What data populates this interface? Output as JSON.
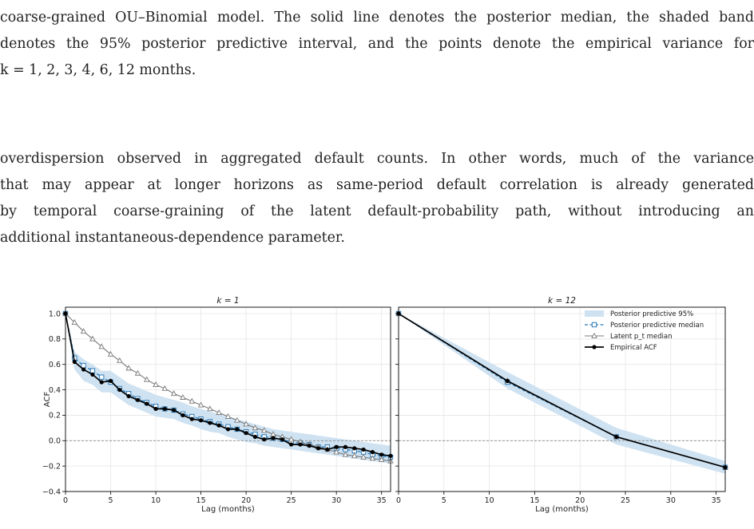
{
  "document": {
    "caption_lines": [
      "coarse-grained OU–Binomial model. The solid line denotes the posterior median, the shaded band",
      "denotes the 95% posterior predictive interval, and the points denote the empirical variance for",
      "k = 1, 2, 3, 4, 6, 12 months."
    ],
    "body_lines": [
      "overdispersion observed in aggregated default counts. In other words, much of the variance",
      "that may appear at longer horizons as same-period default correlation is already generated",
      "by temporal coarse-graining of the latent default-probability path, without introducing an",
      "additional instantaneous-dependence parameter."
    ]
  },
  "chart_data": [
    {
      "type": "line",
      "title": "k = 1",
      "xlabel": "Lag (months)",
      "ylabel": "ACF",
      "xlim": [
        0,
        36
      ],
      "ylim": [
        -0.4,
        1.05
      ],
      "x_ticks": [
        0,
        5,
        10,
        15,
        20,
        25,
        30,
        35
      ],
      "y_ticks": [
        -0.4,
        -0.2,
        0.0,
        0.2,
        0.4,
        0.6,
        0.8,
        1.0
      ],
      "y_tick_labels": [
        "−0.4",
        "−0.2",
        "0.0",
        "0.2",
        "0.4",
        "0.6",
        "0.8",
        "1.0"
      ],
      "reference_line_y": 0.0,
      "grid": true,
      "x": [
        0,
        1,
        2,
        3,
        4,
        5,
        6,
        7,
        8,
        9,
        10,
        11,
        12,
        13,
        14,
        15,
        16,
        17,
        18,
        19,
        20,
        21,
        22,
        23,
        24,
        25,
        26,
        27,
        28,
        29,
        30,
        31,
        32,
        33,
        34,
        35,
        36
      ],
      "band_lower": [
        1.0,
        0.56,
        0.47,
        0.44,
        0.38,
        0.38,
        0.33,
        0.28,
        0.25,
        0.22,
        0.19,
        0.18,
        0.17,
        0.14,
        0.12,
        0.09,
        0.07,
        0.06,
        0.03,
        0.01,
        -0.01,
        -0.02,
        -0.04,
        -0.05,
        -0.06,
        -0.07,
        -0.08,
        -0.09,
        -0.1,
        -0.11,
        -0.12,
        -0.13,
        -0.14,
        -0.15,
        -0.16,
        -0.17,
        -0.18
      ],
      "band_upper": [
        1.0,
        0.7,
        0.64,
        0.6,
        0.55,
        0.55,
        0.5,
        0.45,
        0.42,
        0.39,
        0.36,
        0.34,
        0.32,
        0.3,
        0.27,
        0.25,
        0.23,
        0.21,
        0.19,
        0.17,
        0.15,
        0.13,
        0.11,
        0.09,
        0.08,
        0.07,
        0.06,
        0.05,
        0.04,
        0.03,
        0.02,
        0.01,
        0.0,
        -0.01,
        -0.02,
        -0.03,
        -0.04
      ],
      "series": [
        {
          "name": "Posterior predictive median",
          "style": "dashed-square",
          "values": [
            1.0,
            0.65,
            0.59,
            0.55,
            0.5,
            0.46,
            0.41,
            0.37,
            0.33,
            0.3,
            0.27,
            0.25,
            0.24,
            0.21,
            0.19,
            0.17,
            0.15,
            0.13,
            0.11,
            0.09,
            0.07,
            0.05,
            0.03,
            0.02,
            0.01,
            -0.01,
            -0.02,
            -0.03,
            -0.05,
            -0.05,
            -0.06,
            -0.07,
            -0.08,
            -0.09,
            -0.11,
            -0.12,
            -0.13
          ]
        },
        {
          "name": "Latent p_t median",
          "style": "solid-triangle",
          "values": [
            1.0,
            0.93,
            0.86,
            0.8,
            0.74,
            0.68,
            0.63,
            0.57,
            0.53,
            0.48,
            0.44,
            0.41,
            0.37,
            0.34,
            0.31,
            0.28,
            0.25,
            0.22,
            0.19,
            0.16,
            0.13,
            0.1,
            0.08,
            0.05,
            0.03,
            0.01,
            -0.01,
            -0.03,
            -0.05,
            -0.07,
            -0.09,
            -0.11,
            -0.12,
            -0.13,
            -0.14,
            -0.15,
            -0.16
          ]
        },
        {
          "name": "Empirical ACF",
          "style": "solid-circle",
          "values": [
            1.0,
            0.62,
            0.56,
            0.52,
            0.46,
            0.47,
            0.4,
            0.35,
            0.32,
            0.29,
            0.25,
            0.25,
            0.24,
            0.2,
            0.17,
            0.16,
            0.14,
            0.12,
            0.09,
            0.09,
            0.06,
            0.03,
            0.01,
            0.02,
            0.01,
            -0.03,
            -0.03,
            -0.04,
            -0.06,
            -0.07,
            -0.05,
            -0.05,
            -0.06,
            -0.07,
            -0.09,
            -0.11,
            -0.12
          ]
        }
      ]
    },
    {
      "type": "line",
      "title": "k = 12",
      "xlabel": "Lag (months)",
      "xlim": [
        0,
        36
      ],
      "ylim": [
        -0.4,
        1.05
      ],
      "x_ticks": [
        0,
        5,
        10,
        15,
        20,
        25,
        30,
        35
      ],
      "reference_line_y": 0.0,
      "grid": true,
      "legend_position": "top-right",
      "x": [
        0,
        12,
        24,
        36
      ],
      "band_lower": [
        1.0,
        0.41,
        -0.03,
        -0.26
      ],
      "band_upper": [
        1.0,
        0.54,
        0.1,
        -0.16
      ],
      "series": [
        {
          "name": "Posterior predictive median",
          "style": "dashed-square",
          "values": [
            1.0,
            0.46,
            0.03,
            -0.21
          ]
        },
        {
          "name": "Latent p_t median",
          "style": "solid-triangle",
          "values": [
            1.0,
            0.47,
            0.03,
            -0.21
          ]
        },
        {
          "name": "Empirical ACF",
          "style": "solid-circle",
          "values": [
            1.0,
            0.47,
            0.03,
            -0.21
          ]
        }
      ],
      "legend": [
        {
          "label": "Posterior predictive 95%",
          "style": "band"
        },
        {
          "label": "Posterior predictive median",
          "style": "dashed-square"
        },
        {
          "label": "Latent p_t median",
          "style": "solid-triangle"
        },
        {
          "label": "Empirical ACF",
          "style": "solid-circle"
        }
      ]
    }
  ],
  "colors": {
    "band": "#cfe2f1",
    "median": "#2b7bb9",
    "latent": "#7a7a7a",
    "empirical": "#000000",
    "grid": "#e6e6e6",
    "refline": "#8a8a8a"
  }
}
